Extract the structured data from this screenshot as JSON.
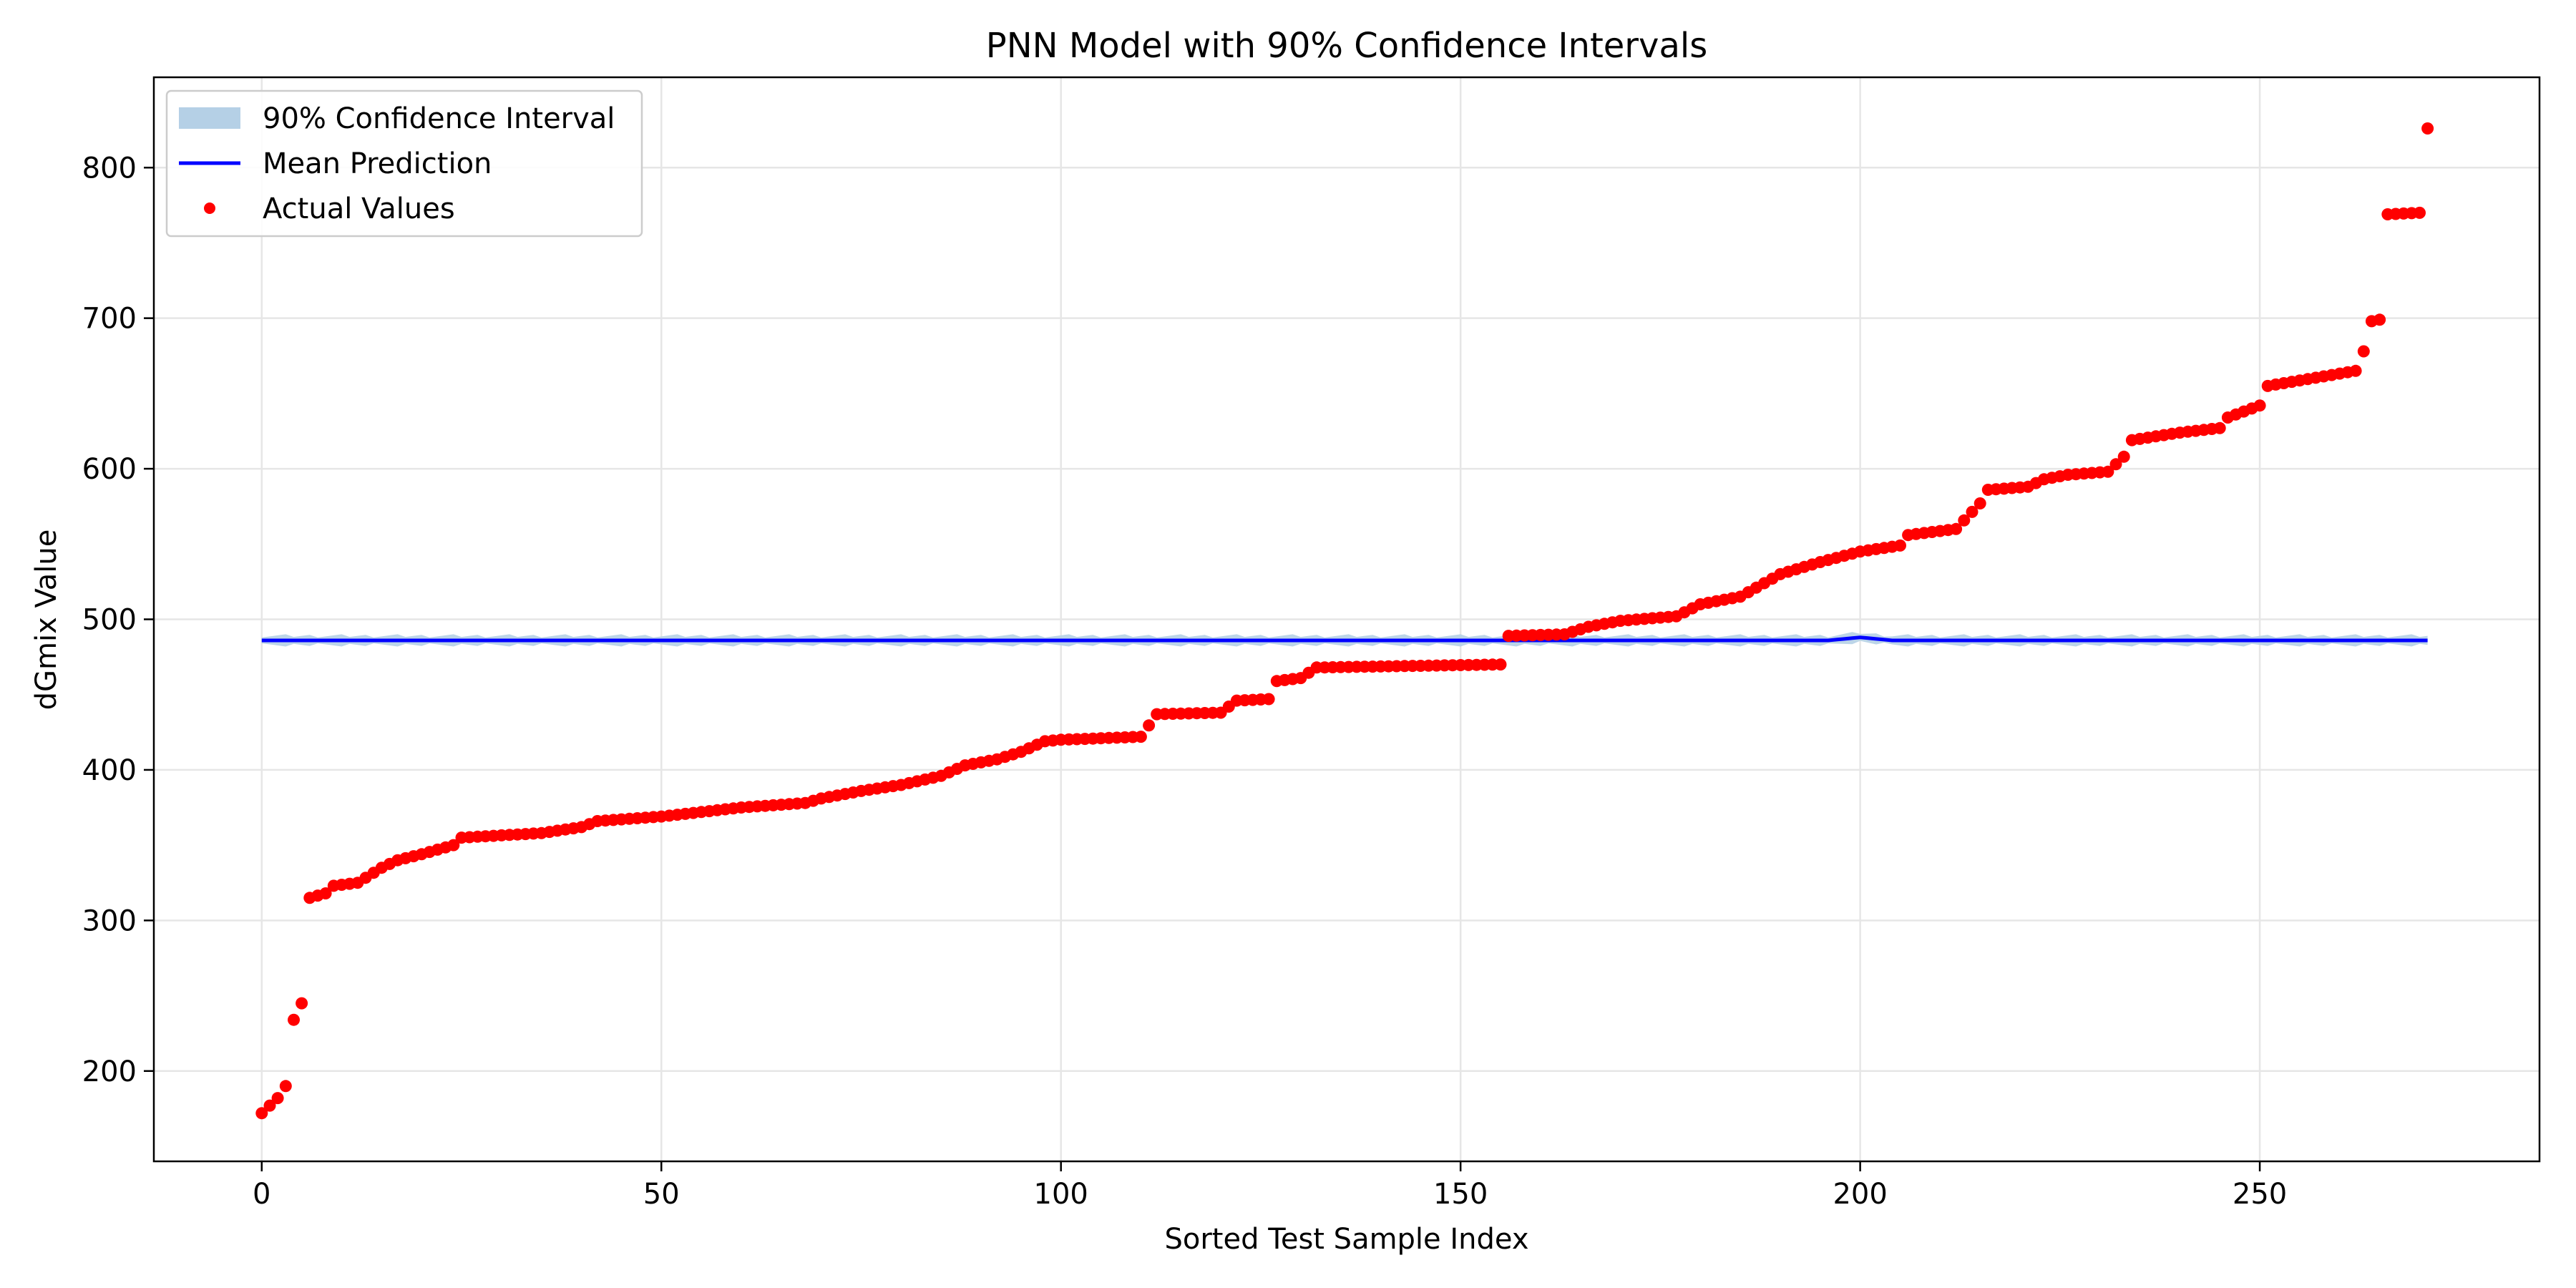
{
  "chart_data": {
    "type": "scatter",
    "title": "PNN Model with 90% Confidence Intervals",
    "xlabel": "Sorted Test Sample Index",
    "ylabel": "dGmix Value",
    "xlim": [
      -13.5,
      285
    ],
    "ylim": [
      140,
      860
    ],
    "xticks": [
      0,
      50,
      100,
      150,
      200,
      250
    ],
    "yticks": [
      200,
      300,
      400,
      500,
      600,
      700,
      800
    ],
    "grid": true,
    "legend_position": "top-left",
    "legend": {
      "band": "90% Confidence Interval",
      "line": "Mean Prediction",
      "points": "Actual Values"
    },
    "colors": {
      "band": "#b5d0e6",
      "line": "#0000ff",
      "points": "#ff0000",
      "grid": "#e6e6e6"
    },
    "mean_prediction": {
      "x_range": [
        0,
        271
      ],
      "y": 486,
      "y_bumps": [
        {
          "x": 200,
          "y": 488
        }
      ]
    },
    "confidence_interval": {
      "lower": 483,
      "upper": 489
    },
    "actual_values": {
      "x_range": [
        0,
        271
      ],
      "y_anchors": [
        [
          0,
          172
        ],
        [
          1,
          177
        ],
        [
          2,
          182
        ],
        [
          3,
          190
        ],
        [
          4,
          234
        ],
        [
          5,
          245
        ],
        [
          6,
          315
        ],
        [
          8,
          318
        ],
        [
          9,
          323
        ],
        [
          12,
          325
        ],
        [
          15,
          335
        ],
        [
          17,
          340
        ],
        [
          20,
          344
        ],
        [
          22,
          347
        ],
        [
          24,
          350
        ],
        [
          25,
          355
        ],
        [
          35,
          358
        ],
        [
          40,
          362
        ],
        [
          42,
          366
        ],
        [
          50,
          369
        ],
        [
          55,
          372
        ],
        [
          60,
          375
        ],
        [
          68,
          378
        ],
        [
          70,
          381
        ],
        [
          75,
          386
        ],
        [
          80,
          390
        ],
        [
          85,
          396
        ],
        [
          88,
          403
        ],
        [
          92,
          407
        ],
        [
          95,
          412
        ],
        [
          98,
          419
        ],
        [
          100,
          420
        ],
        [
          110,
          422
        ],
        [
          112,
          437
        ],
        [
          120,
          438
        ],
        [
          122,
          446
        ],
        [
          126,
          447
        ],
        [
          127,
          459
        ],
        [
          130,
          461
        ],
        [
          132,
          468
        ],
        [
          155,
          470
        ],
        [
          156,
          489
        ],
        [
          163,
          490
        ],
        [
          166,
          495
        ],
        [
          170,
          499
        ],
        [
          177,
          502
        ],
        [
          180,
          510
        ],
        [
          185,
          515
        ],
        [
          190,
          530
        ],
        [
          195,
          538
        ],
        [
          200,
          545
        ],
        [
          205,
          549
        ],
        [
          206,
          556
        ],
        [
          212,
          560
        ],
        [
          215,
          577
        ],
        [
          216,
          586
        ],
        [
          221,
          588
        ],
        [
          223,
          593
        ],
        [
          226,
          596
        ],
        [
          231,
          598
        ],
        [
          233,
          608
        ],
        [
          234,
          619
        ],
        [
          240,
          624
        ],
        [
          245,
          627
        ],
        [
          246,
          634
        ],
        [
          250,
          642
        ],
        [
          251,
          655
        ],
        [
          262,
          665
        ],
        [
          263,
          678
        ],
        [
          264,
          698
        ],
        [
          265,
          699
        ],
        [
          266,
          769
        ],
        [
          270,
          770
        ],
        [
          271,
          826
        ]
      ]
    }
  }
}
